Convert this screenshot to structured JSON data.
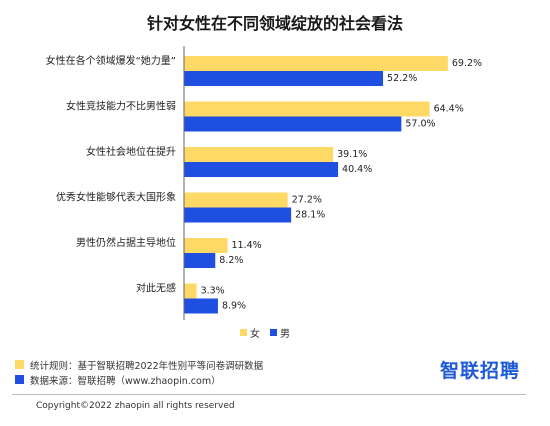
{
  "title": "针对女性在不同领域绽放的社会看法",
  "colors": {
    "female": "#FFD966",
    "male": "#1F4FE0",
    "axis": "#666666"
  },
  "legend": {
    "female_label": "女",
    "male_label": "男"
  },
  "chart_data": {
    "type": "bar",
    "orientation": "horizontal",
    "title": "针对女性在不同领域绽放的社会看法",
    "categories": [
      "女性在各个领域爆发“她力量”",
      "女性竞技能力不比男性弱",
      "女性社会地位在提升",
      "优秀女性能够代表大国形象",
      "男性仍然占据主导地位",
      "对此无感"
    ],
    "series": [
      {
        "name": "女",
        "values": [
          69.2,
          64.4,
          39.1,
          27.2,
          11.4,
          3.3
        ],
        "labels": [
          "69.2%",
          "64.4%",
          "39.1%",
          "27.2%",
          "11.4%",
          "3.3%"
        ]
      },
      {
        "name": "男",
        "values": [
          52.2,
          57.0,
          40.4,
          28.1,
          8.2,
          8.9
        ],
        "labels": [
          "52.2%",
          "57.0%",
          "40.4%",
          "28.1%",
          "8.2%",
          "8.9%"
        ]
      }
    ],
    "xlim": [
      0,
      75
    ],
    "legend_position": "bottom"
  },
  "notes": {
    "stats_rule": "统计规则：基于智联招聘2022年性别平等问卷调研数据",
    "data_source": "数据来源：智联招聘（www.zhaopin.com）"
  },
  "brand": "智联招聘",
  "copyright": "Copyright©2022 zhaopin all rights reserved"
}
